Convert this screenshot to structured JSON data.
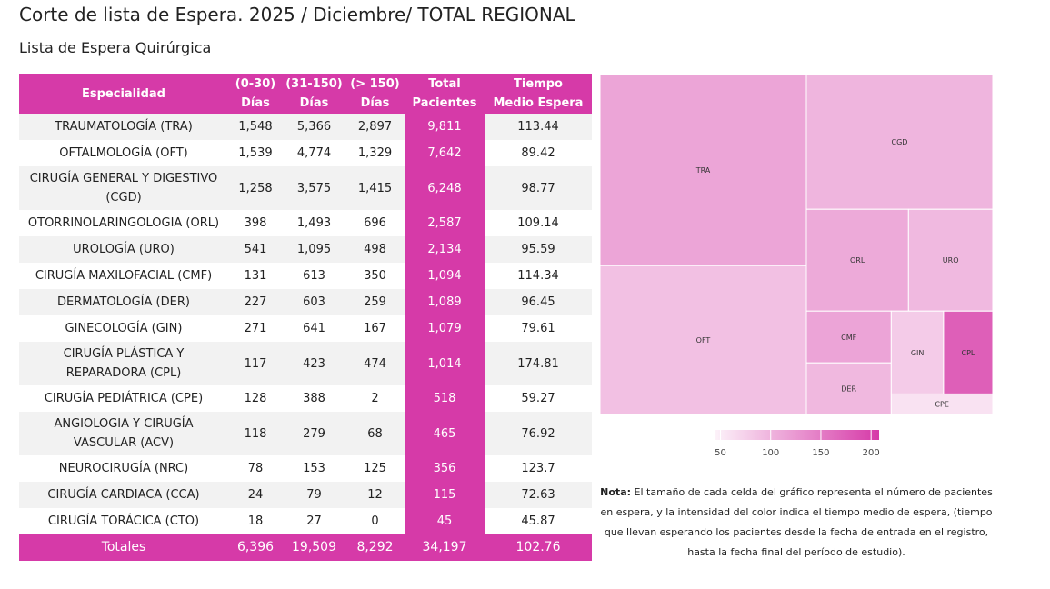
{
  "title": "Corte de lista de Espera. 2025 / Diciembre/ TOTAL REGIONAL",
  "subtitle": "Lista de Espera Quirúrgica",
  "table": {
    "header": [
      "Especialidad",
      "(0-30)\nDías",
      "(31-150)\nDías",
      "(> 150)\nDías",
      "Total\nPacientes",
      "Tiempo\nMedio Espera"
    ],
    "rows": [
      [
        "TRAUMATOLOGÍA (TRA)",
        "1,548",
        "5,366",
        "2,897",
        "9,811",
        "113.44"
      ],
      [
        "OFTALMOLOGÍA (OFT)",
        "1,539",
        "4,774",
        "1,329",
        "7,642",
        "89.42"
      ],
      [
        "CIRUGÍA GENERAL Y DIGESTIVO (CGD)",
        "1,258",
        "3,575",
        "1,415",
        "6,248",
        "98.77"
      ],
      [
        "OTORRINOLARINGOLOGIA (ORL)",
        "398",
        "1,493",
        "696",
        "2,587",
        "109.14"
      ],
      [
        "UROLOGÍA (URO)",
        "541",
        "1,095",
        "498",
        "2,134",
        "95.59"
      ],
      [
        "CIRUGÍA MAXILOFACIAL (CMF)",
        "131",
        "613",
        "350",
        "1,094",
        "114.34"
      ],
      [
        "DERMATOLOGÍA (DER)",
        "227",
        "603",
        "259",
        "1,089",
        "96.45"
      ],
      [
        "GINECOLOGÍA (GIN)",
        "271",
        "641",
        "167",
        "1,079",
        "79.61"
      ],
      [
        "CIRUGÍA PLÁSTICA Y REPARADORA (CPL)",
        "117",
        "423",
        "474",
        "1,014",
        "174.81"
      ],
      [
        "CIRUGÍA PEDIÁTRICA (CPE)",
        "128",
        "388",
        "2",
        "518",
        "59.27"
      ],
      [
        "ANGIOLOGIA Y CIRUGÍA VASCULAR (ACV)",
        "118",
        "279",
        "68",
        "465",
        "76.92"
      ],
      [
        "NEUROCIRUGÍA (NRC)",
        "78",
        "153",
        "125",
        "356",
        "123.7"
      ],
      [
        "CIRUGÍA CARDIACA (CCA)",
        "24",
        "79",
        "12",
        "115",
        "72.63"
      ],
      [
        "CIRUGÍA TORÁCICA (CTO)",
        "18",
        "27",
        "0",
        "45",
        "45.87"
      ]
    ],
    "totals": [
      "Totales",
      "6,396",
      "19,509",
      "8,292",
      "34,197",
      "102.76"
    ]
  },
  "chart_data": {
    "type": "treemap",
    "categories": [
      "TRA",
      "OFT",
      "CGD",
      "ORL",
      "URO",
      "CMF",
      "DER",
      "GIN",
      "CPL",
      "CPE"
    ],
    "values": [
      9811,
      7642,
      6248,
      2587,
      2134,
      1094,
      1089,
      1079,
      1014,
      518
    ],
    "color_values": [
      113.44,
      89.42,
      98.77,
      109.14,
      95.59,
      114.34,
      96.45,
      79.61,
      174.81,
      59.27
    ],
    "clim": [
      45,
      208
    ],
    "colorbar_ticks": [
      50,
      100,
      150,
      200
    ],
    "colors": [
      "#fcf2f9",
      "#d63aa8"
    ]
  },
  "note": {
    "label": "Nota:",
    "text": " El tamaño de cada celda del gráfico representa el número de pacientes en espera, y la intensidad del color indica el tiempo medio de espera, (tiempo que llevan esperando los pacientes desde la fecha de entrada en el registro, hasta la fecha final del período de estudio)."
  }
}
